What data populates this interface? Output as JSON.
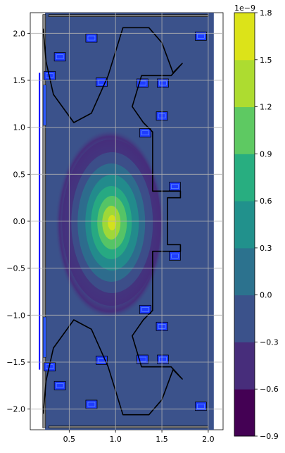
{
  "chart_data": {
    "type": "filled-contour",
    "title": "",
    "xlabel": "",
    "ylabel": "",
    "xlim": [
      0.08,
      2.16
    ],
    "ylim": [
      -2.22,
      2.22
    ],
    "x_ticks": [
      0.5,
      1.0,
      1.5,
      2.0
    ],
    "x_tick_labels": [
      "0.5",
      "1.0",
      "1.5",
      "2.0"
    ],
    "y_ticks": [
      2.0,
      1.5,
      1.0,
      0.5,
      0.0,
      -0.5,
      -1.0,
      -1.5,
      -2.0
    ],
    "y_tick_labels": [
      "2.0",
      "1.5",
      "1.0",
      "0.5",
      "0.0",
      "−0.5",
      "−1.0",
      "−1.5",
      "−2.0"
    ],
    "grid": true,
    "contour_center": [
      0.97,
      0.0
    ],
    "contour_levels": [
      -0.9,
      -0.6,
      -0.3,
      0.0,
      0.3,
      0.6,
      0.9,
      1.2,
      1.5,
      1.8
    ],
    "colorbar": {
      "exponent_label": "1e−9",
      "range": [
        -0.9,
        1.8
      ],
      "ticks": [
        1.8,
        1.5,
        1.2,
        0.9,
        0.6,
        0.3,
        0.0,
        -0.3,
        -0.6,
        -0.9
      ],
      "tick_labels": [
        "1.8",
        "1.5",
        "1.2",
        "0.9",
        "0.6",
        "0.3",
        "0.0",
        "−0.3",
        "−0.6",
        "−0.9"
      ],
      "colors": [
        "#440154",
        "#472d7b",
        "#3b528b",
        "#2c728e",
        "#21918c",
        "#28ae80",
        "#5ec962",
        "#addc30",
        "#dce319"
      ]
    },
    "field_base_color": "#3b528b",
    "wall_outline": [
      [
        0.22,
        2.05
      ],
      [
        0.25,
        1.7
      ],
      [
        0.33,
        1.35
      ],
      [
        0.55,
        1.05
      ],
      [
        0.74,
        1.15
      ],
      [
        0.92,
        1.55
      ],
      [
        1.08,
        2.06
      ],
      [
        1.36,
        2.06
      ],
      [
        1.5,
        1.9
      ],
      [
        1.62,
        1.58
      ],
      [
        1.72,
        1.68
      ],
      [
        1.6,
        1.55
      ],
      [
        1.28,
        1.55
      ],
      [
        1.18,
        1.22
      ],
      [
        1.3,
        1.05
      ],
      [
        1.4,
        0.95
      ],
      [
        1.4,
        0.32
      ],
      [
        1.7,
        0.32
      ],
      [
        1.7,
        0.25
      ],
      [
        1.56,
        0.25
      ],
      [
        1.56,
        -0.25
      ],
      [
        1.7,
        -0.25
      ],
      [
        1.7,
        -0.32
      ],
      [
        1.4,
        -0.32
      ],
      [
        1.4,
        -0.95
      ],
      [
        1.3,
        -1.05
      ],
      [
        1.18,
        -1.22
      ],
      [
        1.28,
        -1.55
      ],
      [
        1.6,
        -1.55
      ],
      [
        1.72,
        -1.68
      ],
      [
        1.62,
        -1.58
      ],
      [
        1.5,
        -1.9
      ],
      [
        1.36,
        -2.06
      ],
      [
        1.08,
        -2.06
      ],
      [
        0.92,
        -1.55
      ],
      [
        0.74,
        -1.15
      ],
      [
        0.55,
        -1.05
      ],
      [
        0.33,
        -1.35
      ],
      [
        0.25,
        -1.7
      ],
      [
        0.22,
        -2.05
      ]
    ],
    "coils": [
      [
        0.29,
        -1.55
      ],
      [
        0.29,
        1.55
      ],
      [
        0.4,
        -1.75
      ],
      [
        0.4,
        1.75
      ],
      [
        0.74,
        -1.95
      ],
      [
        0.74,
        1.95
      ],
      [
        0.85,
        -1.48
      ],
      [
        0.85,
        1.48
      ],
      [
        1.29,
        -1.47
      ],
      [
        1.29,
        1.47
      ],
      [
        1.51,
        -1.47
      ],
      [
        1.51,
        1.47
      ],
      [
        1.32,
        -0.94
      ],
      [
        1.32,
        0.94
      ],
      [
        1.5,
        -1.12
      ],
      [
        1.5,
        1.12
      ],
      [
        1.64,
        -0.37
      ],
      [
        1.64,
        0.37
      ],
      [
        1.92,
        -1.97
      ],
      [
        1.92,
        1.97
      ]
    ],
    "central_solenoid_x": 0.18
  }
}
